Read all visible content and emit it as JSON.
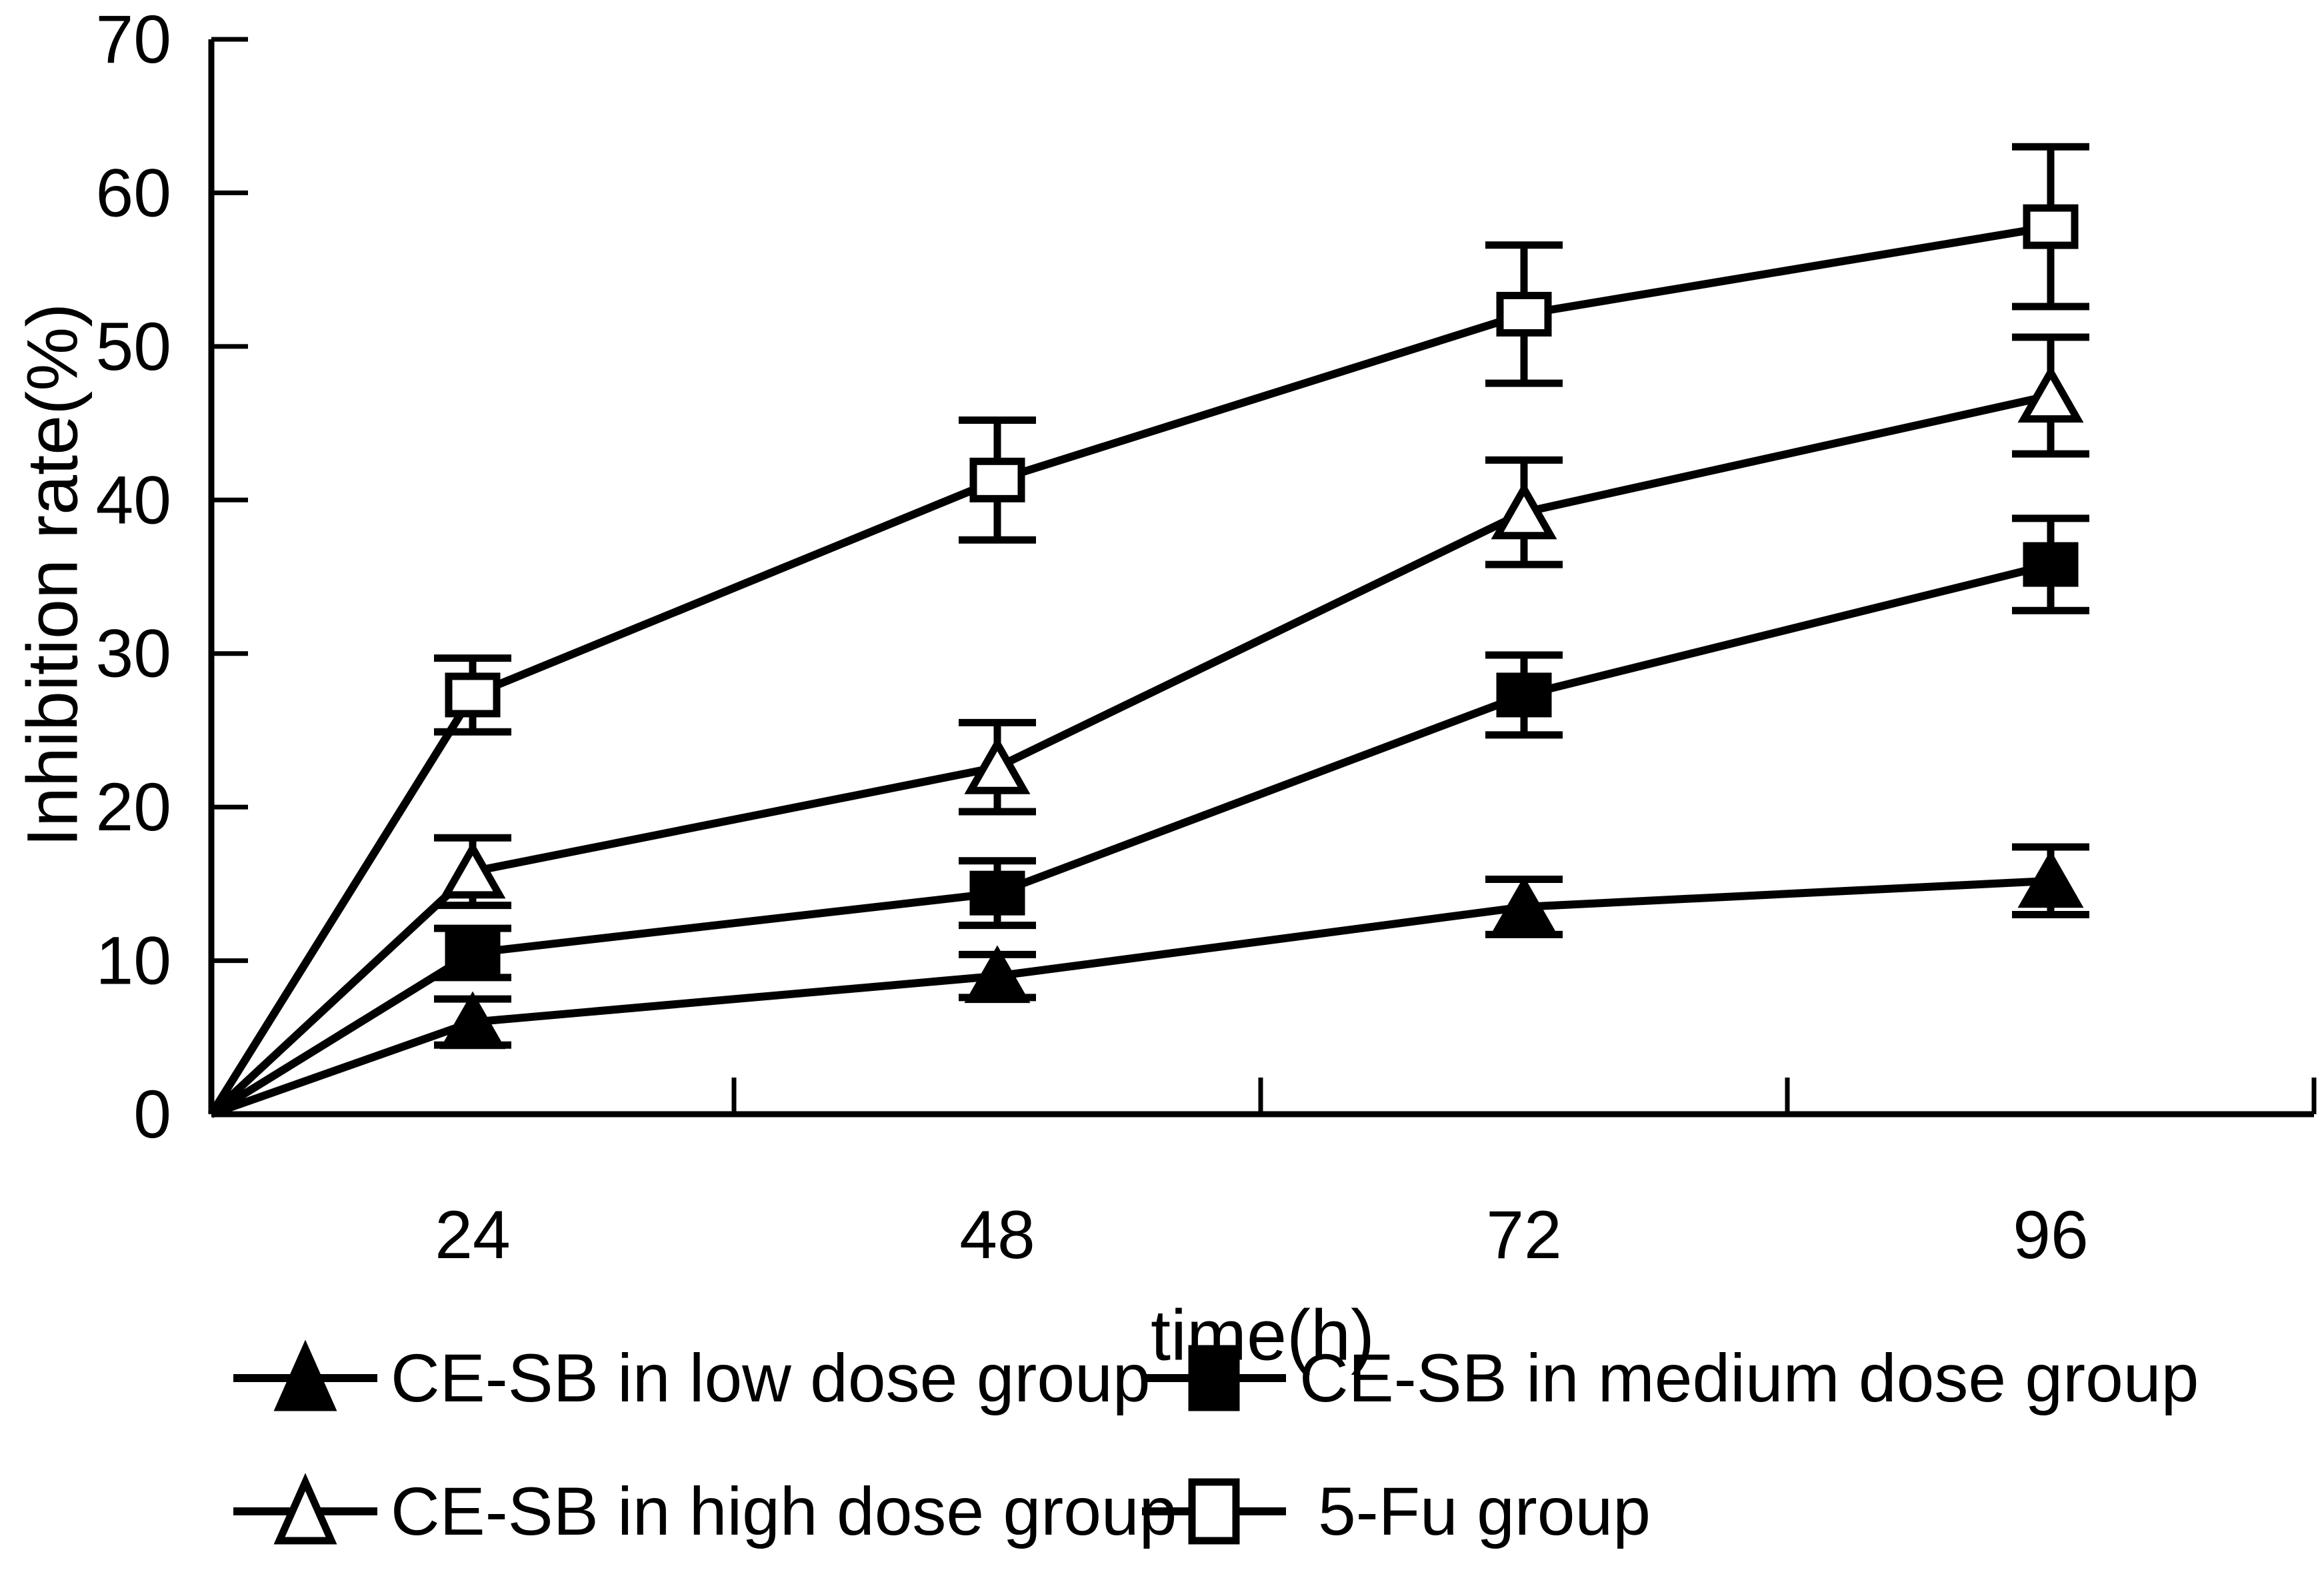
{
  "chart_data": {
    "type": "line",
    "title": "",
    "xlabel": "time(h)",
    "ylabel": "Inhibition rate(%)",
    "categories": [
      24,
      48,
      72,
      96
    ],
    "x_tick_labels": [
      "24",
      "48",
      "72",
      "96"
    ],
    "y_tick_labels": [
      "0",
      "10",
      "20",
      "30",
      "40",
      "50",
      "60",
      "70"
    ],
    "y_ticks": [
      0,
      10,
      20,
      30,
      40,
      50,
      60,
      70
    ],
    "ylim": [
      0,
      70
    ],
    "grid": false,
    "lines_start_at_origin": true,
    "error_bars": true,
    "legend_position": "bottom",
    "colors": {
      "foreground": "#000000",
      "background": "#ffffff"
    },
    "series": [
      {
        "name": "CE-SB in low dose group",
        "marker": "filled-triangle",
        "values": [
          6.0,
          9.0,
          13.5,
          15.2
        ],
        "errors": [
          1.5,
          1.4,
          1.8,
          2.2
        ]
      },
      {
        "name": "CE-SB in medium dose group",
        "marker": "filled-square",
        "values": [
          10.5,
          14.4,
          27.3,
          35.8
        ],
        "errors": [
          1.6,
          2.1,
          2.6,
          3.0
        ]
      },
      {
        "name": "CE-SB in high dose group",
        "marker": "open-triangle",
        "values": [
          15.8,
          22.6,
          39.2,
          46.8
        ],
        "errors": [
          2.2,
          2.9,
          3.4,
          3.8
        ]
      },
      {
        "name": "5-Fu group",
        "marker": "open-square",
        "values": [
          27.3,
          41.3,
          52.1,
          57.8
        ],
        "errors": [
          2.4,
          3.9,
          4.5,
          5.2
        ]
      }
    ],
    "legend_rows": [
      {
        "entries": [
          0,
          1
        ]
      },
      {
        "entries": [
          2,
          3
        ]
      }
    ]
  }
}
